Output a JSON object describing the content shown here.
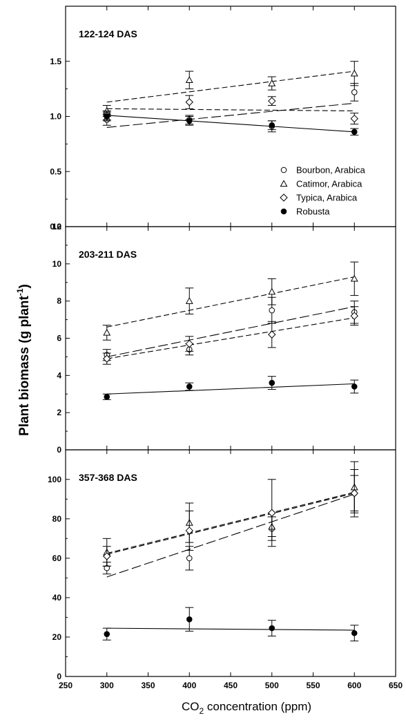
{
  "chart_data": {
    "type": "scatter",
    "xlabel": {
      "prefix": "CO",
      "sub": "2",
      "suffix": " concentration (ppm)"
    },
    "ylabel": {
      "main": "Plant biomass (g plant",
      "sup": "-1",
      "end": ")"
    },
    "xlim": [
      250,
      650
    ],
    "xticks": [
      250,
      300,
      350,
      400,
      450,
      500,
      550,
      600,
      650
    ],
    "x": [
      300,
      400,
      500,
      600
    ],
    "series_styles": [
      {
        "name": "Bourbon, Arabica",
        "marker": "circle-open",
        "dash": "long-dash"
      },
      {
        "name": "Catimor, Arabica",
        "marker": "triangle-open",
        "dash": "dash"
      },
      {
        "name": "Typica, Arabica",
        "marker": "diamond-open",
        "dash": "dash"
      },
      {
        "name": "Robusta",
        "marker": "circle-filled",
        "dash": "solid"
      }
    ],
    "legend": {
      "position": "lower-right of top panel"
    },
    "panels": [
      {
        "title": "122-124 DAS",
        "ylim": [
          0,
          2.0
        ],
        "yticks": [
          0.0,
          0.5,
          1.0,
          1.5
        ],
        "ytick_labels": [
          "0.0",
          "0.5",
          "1.0",
          "1.5"
        ],
        "series": [
          {
            "values": [
              0.97,
              0.97,
              0.91,
              1.22
            ],
            "errors": [
              0.05,
              0.04,
              0.05,
              0.08
            ],
            "fit": [
              0.9,
              1.12
            ]
          },
          {
            "values": [
              1.05,
              1.33,
              1.3,
              1.39
            ],
            "errors": [
              0.05,
              0.08,
              0.06,
              0.11
            ],
            "fit": [
              1.13,
              1.41
            ]
          },
          {
            "values": [
              1.01,
              1.13,
              1.14,
              0.98
            ],
            "errors": [
              0.04,
              0.06,
              0.04,
              0.05
            ],
            "fit": [
              1.07,
              1.05
            ]
          },
          {
            "values": [
              1.0,
              0.96,
              0.92,
              0.86
            ],
            "errors": [
              0.04,
              0.04,
              0.04,
              0.03
            ],
            "fit": [
              1.01,
              0.86
            ]
          }
        ]
      },
      {
        "title": "203-211 DAS",
        "ylim": [
          0,
          12
        ],
        "yticks": [
          0,
          2,
          4,
          6,
          8,
          10,
          12
        ],
        "ytick_labels": [
          "0",
          "2",
          "4",
          "6",
          "8",
          "10",
          "12"
        ],
        "series": [
          {
            "values": [
              5.1,
              5.4,
              7.5,
              7.4
            ],
            "errors": [
              0.3,
              0.3,
              0.7,
              0.6
            ],
            "fit": [
              5.0,
              7.7
            ]
          },
          {
            "values": [
              6.3,
              8.0,
              8.5,
              9.2
            ],
            "errors": [
              0.4,
              0.7,
              0.7,
              0.9
            ],
            "fit": [
              6.6,
              9.3
            ]
          },
          {
            "values": [
              4.9,
              5.7,
              6.2,
              7.2
            ],
            "errors": [
              0.3,
              0.4,
              0.7,
              0.5
            ],
            "fit": [
              4.9,
              7.1
            ]
          },
          {
            "values": [
              2.85,
              3.4,
              3.6,
              3.4
            ],
            "errors": [
              0.15,
              0.2,
              0.35,
              0.35
            ],
            "fit": [
              3.0,
              3.55
            ]
          }
        ]
      },
      {
        "title": "357-368 DAS",
        "ylim": [
          0,
          115
        ],
        "yticks": [
          0,
          20,
          40,
          60,
          80,
          100
        ],
        "ytick_labels": [
          "0",
          "20",
          "40",
          "60",
          "80",
          "100"
        ],
        "series": [
          {
            "values": [
              55,
              60,
              75,
              93
            ],
            "errors": [
              3,
              6,
              6,
              9
            ],
            "fit": [
              50.5,
              92.5
            ]
          },
          {
            "values": [
              63,
              78,
              76,
              96
            ],
            "errors": [
              7,
              10,
              5,
              13
            ],
            "fit": [
              62.5,
              93.5
            ]
          },
          {
            "values": [
              61,
              74,
              83,
              93
            ],
            "errors": [
              5,
              10,
              17,
              12
            ],
            "fit": [
              62,
              93
            ]
          },
          {
            "values": [
              21.5,
              29,
              24.5,
              22
            ],
            "errors": [
              3,
              6,
              4,
              4
            ],
            "fit": [
              24.5,
              23.5
            ]
          }
        ]
      }
    ]
  }
}
